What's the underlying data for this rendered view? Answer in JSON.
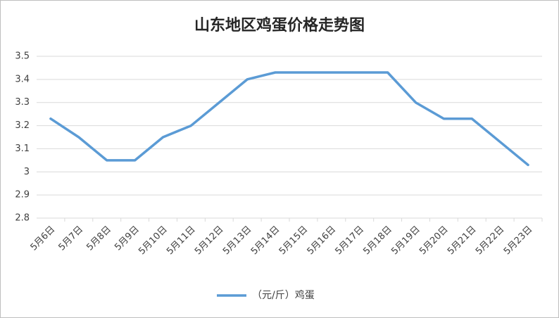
{
  "chart_data": {
    "type": "line",
    "title": "山东地区鸡蛋价格走势图",
    "categories": [
      "5月6日",
      "5月7日",
      "5月8日",
      "5月9日",
      "5月10日",
      "5月11日",
      "5月12日",
      "5月13日",
      "5月14日",
      "5月15日",
      "5月16日",
      "5月17日",
      "5月18日",
      "5月19日",
      "5月20日",
      "5月21日",
      "5月22日",
      "5月23日"
    ],
    "series": [
      {
        "name": "（元/斤）鸡蛋",
        "color": "#5b9bd5",
        "values": [
          3.23,
          3.15,
          3.05,
          3.05,
          3.15,
          3.2,
          3.3,
          3.4,
          3.43,
          3.43,
          3.43,
          3.43,
          3.43,
          3.3,
          3.23,
          3.23,
          3.13,
          3.03
        ]
      }
    ],
    "ylim": [
      2.8,
      3.5
    ],
    "yticks": [
      2.8,
      2.9,
      3,
      3.1,
      3.2,
      3.3,
      3.4,
      3.5
    ],
    "grid": true,
    "legend": "bottom"
  }
}
